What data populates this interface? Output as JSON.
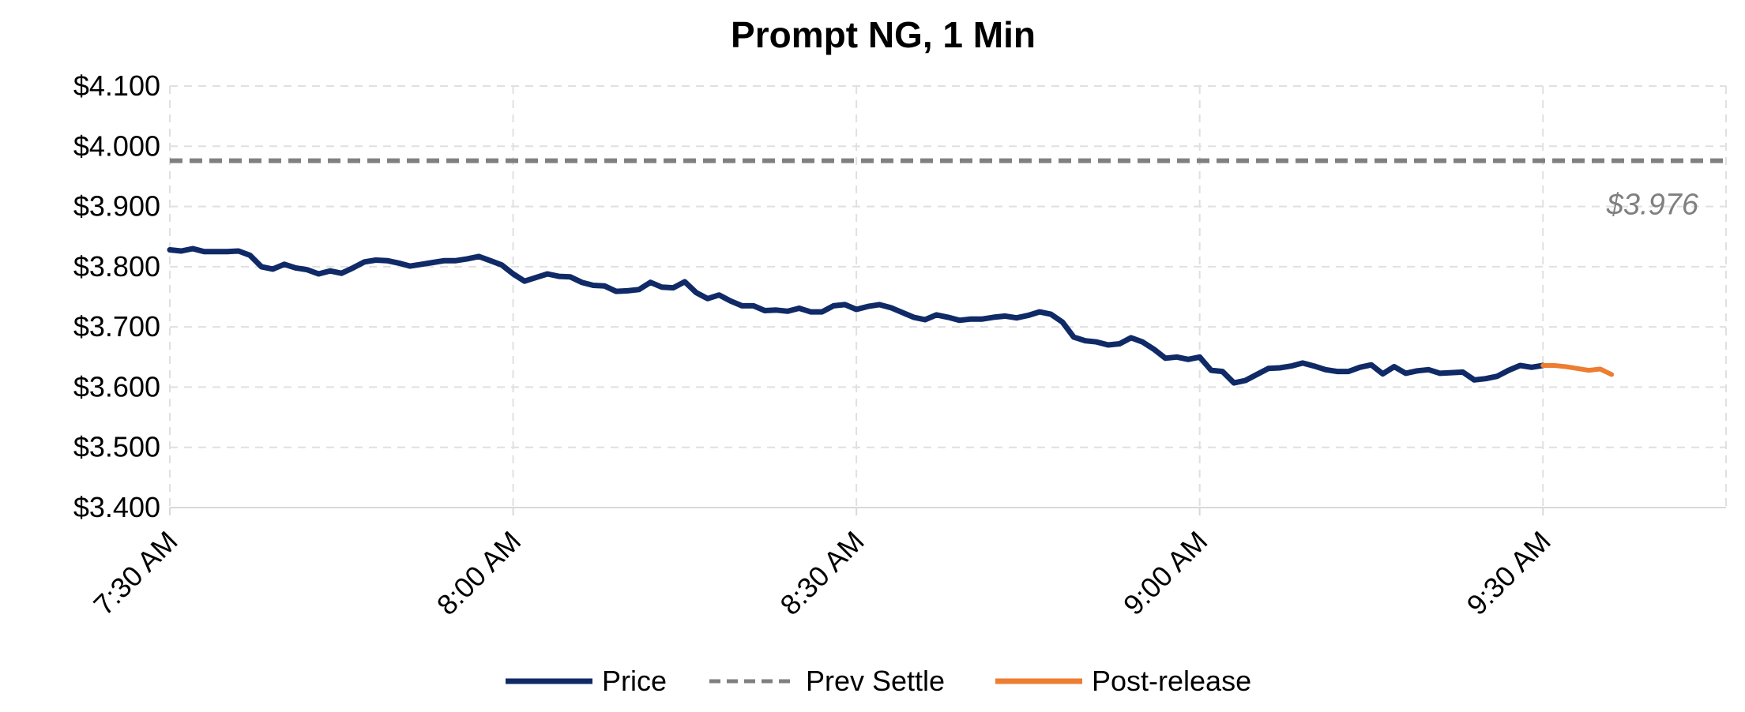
{
  "chart_data": {
    "type": "line",
    "title": "Prompt NG, 1 Min",
    "xlabel": "",
    "ylabel": "",
    "x_unit": "minutes from 7:30 AM",
    "xlim": [
      0,
      136
    ],
    "ylim": [
      3.4,
      4.1
    ],
    "y_ticks": [
      "$3.400",
      "$3.500",
      "$3.600",
      "$3.700",
      "$3.800",
      "$3.900",
      "$4.000",
      "$4.100"
    ],
    "y_tick_values": [
      3.4,
      3.5,
      3.6,
      3.7,
      3.8,
      3.9,
      4.0,
      4.1
    ],
    "x_ticks": [
      "7:30 AM",
      "8:00 AM",
      "8:30 AM",
      "9:00 AM",
      "9:30 AM"
    ],
    "x_tick_values": [
      0,
      30,
      60,
      90,
      120
    ],
    "grid": true,
    "legend_position": "bottom",
    "colors": {
      "price": "#0f2a66",
      "prev_settle": "#808080",
      "post_release": "#ed7d31",
      "grid": "#e0e0e0",
      "axis": "#d9d9d9"
    },
    "series": [
      {
        "name": "Price",
        "style": "solid",
        "x": [
          0,
          1,
          2,
          3,
          4,
          5,
          6,
          7,
          8,
          9,
          10,
          11,
          12,
          13,
          14,
          15,
          16,
          17,
          18,
          19,
          20,
          21,
          22,
          23,
          24,
          25,
          26,
          27,
          28,
          29,
          30,
          31,
          32,
          33,
          34,
          35,
          36,
          37,
          38,
          39,
          40,
          41,
          42,
          43,
          44,
          45,
          46,
          47,
          48,
          49,
          50,
          51,
          52,
          53,
          54,
          55,
          56,
          57,
          58,
          59,
          60,
          61,
          62,
          63,
          64,
          65,
          66,
          67,
          68,
          69,
          70,
          71,
          72,
          73,
          74,
          75,
          76,
          77,
          78,
          79,
          80,
          81,
          82,
          83,
          84,
          85,
          86,
          87,
          88,
          89,
          90,
          91,
          92,
          93,
          94,
          95,
          96,
          97,
          98,
          99,
          100,
          101,
          102,
          103,
          104,
          105,
          106,
          107,
          108,
          109,
          110,
          111,
          112,
          113,
          114,
          115,
          116,
          117,
          118,
          119,
          120
        ],
        "values": [
          3.828,
          3.826,
          3.83,
          3.825,
          3.825,
          3.825,
          3.826,
          3.819,
          3.8,
          3.796,
          3.804,
          3.798,
          3.795,
          3.788,
          3.793,
          3.789,
          3.798,
          3.808,
          3.811,
          3.81,
          3.806,
          3.801,
          3.804,
          3.807,
          3.81,
          3.81,
          3.813,
          3.817,
          3.81,
          3.803,
          3.788,
          3.776,
          3.782,
          3.788,
          3.784,
          3.783,
          3.774,
          3.769,
          3.768,
          3.759,
          3.76,
          3.762,
          3.774,
          3.766,
          3.765,
          3.775,
          3.757,
          3.747,
          3.753,
          3.743,
          3.735,
          3.735,
          3.727,
          3.728,
          3.726,
          3.731,
          3.725,
          3.725,
          3.735,
          3.737,
          3.729,
          3.734,
          3.737,
          3.732,
          3.724,
          3.716,
          3.712,
          3.72,
          3.716,
          3.711,
          3.713,
          3.713,
          3.716,
          3.718,
          3.715,
          3.719,
          3.725,
          3.721,
          3.708,
          3.683,
          3.677,
          3.675,
          3.67,
          3.672,
          3.682,
          3.675,
          3.663,
          3.648,
          3.65,
          3.646,
          3.65,
          3.628,
          3.626,
          3.607,
          3.611,
          3.621,
          3.631,
          3.632,
          3.635,
          3.64,
          3.635,
          3.629,
          3.626,
          3.626,
          3.633,
          3.637,
          3.622,
          3.634,
          3.623,
          3.627,
          3.629,
          3.623,
          3.624,
          3.625,
          3.612,
          3.614,
          3.618,
          3.628,
          3.636,
          3.633,
          3.636
        ]
      },
      {
        "name": "Prev Settle",
        "style": "dashed",
        "value": 3.976,
        "label": "$3.976"
      },
      {
        "name": "Post-release",
        "style": "solid",
        "x": [
          120,
          121,
          122,
          123,
          124,
          125,
          126
        ],
        "values": [
          3.636,
          3.636,
          3.634,
          3.631,
          3.628,
          3.63,
          3.621
        ]
      }
    ],
    "legend": [
      "Price",
      "Prev Settle",
      "Post-release"
    ]
  }
}
